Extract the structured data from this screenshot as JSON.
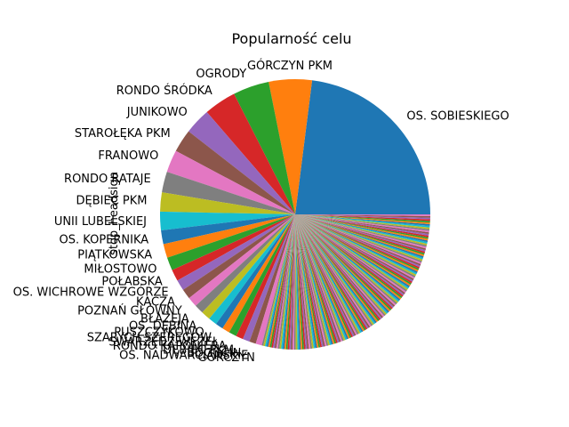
{
  "chart_data": {
    "type": "pie",
    "title": "Popularność celu",
    "ylabel": "stop_headsign",
    "xlabel": "",
    "labeled_slices": [
      {
        "label": "OS. SOBIESKIEGO",
        "value": 25.0,
        "color": "#1f77b4"
      },
      {
        "label": "GÓRCZYN PKM",
        "value": 5.6,
        "color": "#ff7f0e"
      },
      {
        "label": "OGRODY",
        "value": 4.7,
        "color": "#2ca02c"
      },
      {
        "label": "RONDO ŚRÓDKA",
        "value": 4.2,
        "color": "#d62728"
      },
      {
        "label": "JUNIKOWO",
        "value": 3.4,
        "color": "#9467bd"
      },
      {
        "label": "STAROŁĘKA PKM",
        "value": 3.0,
        "color": "#8c564b"
      },
      {
        "label": "FRANOWO",
        "value": 2.9,
        "color": "#e377c2"
      },
      {
        "label": "RONDO RATAJE",
        "value": 2.7,
        "color": "#7f7f7f"
      },
      {
        "label": "DĘBIEC PKM",
        "value": 2.5,
        "color": "#bcbd22"
      },
      {
        "label": "UNII LUBELSKIEJ",
        "value": 2.4,
        "color": "#17becf"
      },
      {
        "label": "OS. KOPERNIKA",
        "value": 1.8,
        "color": "#1f77b4"
      },
      {
        "label": "PIĄTKOWSKA",
        "value": 1.8,
        "color": "#ff7f0e"
      },
      {
        "label": "MIŁOSTOWO",
        "value": 1.7,
        "color": "#2ca02c"
      },
      {
        "label": "POŁABSKA",
        "value": 1.5,
        "color": "#d62728"
      },
      {
        "label": "OS. WICHROWE WZGÓRZE",
        "value": 1.4,
        "color": "#9467bd"
      },
      {
        "label": "KACZA",
        "value": 1.3,
        "color": "#8c564b"
      },
      {
        "label": "POZNAŃ GŁÓWNY",
        "value": 1.3,
        "color": "#e377c2"
      },
      {
        "label": "BŁAŻEJA",
        "value": 1.2,
        "color": "#7f7f7f"
      },
      {
        "label": "OS. DĘBINA",
        "value": 1.2,
        "color": "#bcbd22"
      },
      {
        "label": "PUSZCZYKOWO",
        "value": 1.1,
        "color": "#17becf"
      },
      {
        "label": "SZARYCH SZEREGÓW",
        "value": 1.0,
        "color": "#1f77b4"
      },
      {
        "label": "SWARZĘDZ-WĘZEŁ",
        "value": 1.0,
        "color": "#ff7f0e"
      },
      {
        "label": "RONDO KAPONIERA",
        "value": 1.0,
        "color": "#2ca02c"
      },
      {
        "label": "DĘBIEC PKM",
        "value": 0.95,
        "color": "#d62728"
      },
      {
        "label": "BOGUCIN",
        "value": 0.9,
        "color": "#9467bd"
      },
      {
        "label": "OS. NADWARCIAŃSKIE",
        "value": 0.85,
        "color": "#8c564b"
      },
      {
        "label": "GÓRCZYN",
        "value": 0.8,
        "color": "#e377c2"
      }
    ],
    "minor_slices": {
      "count": 150,
      "value_each": 0.21,
      "colors": [
        "#1f77b4",
        "#ff7f0e",
        "#2ca02c",
        "#d62728",
        "#9467bd",
        "#8c564b",
        "#e377c2",
        "#7f7f7f",
        "#bcbd22",
        "#17becf"
      ]
    },
    "legend": "none",
    "start_angle": 0
  }
}
